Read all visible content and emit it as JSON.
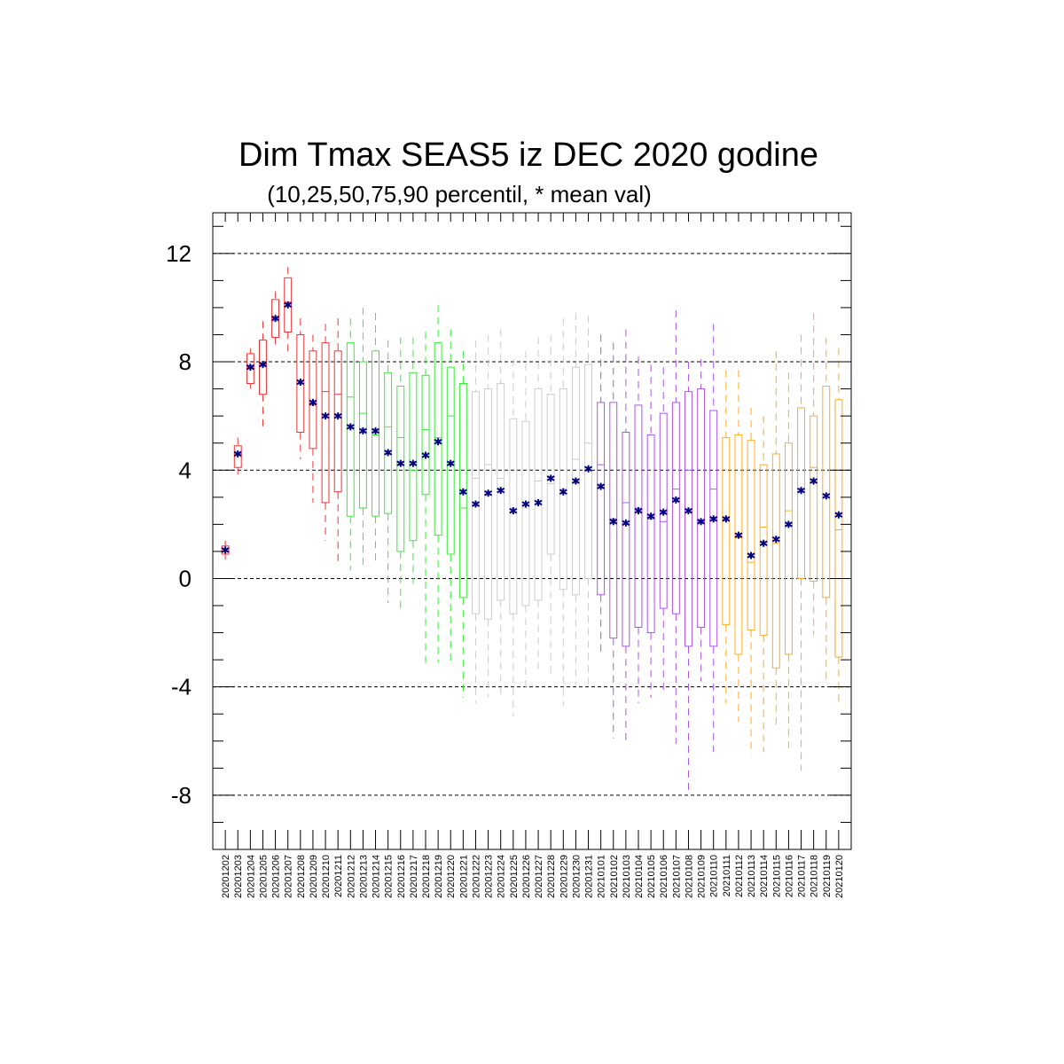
{
  "chart_data": {
    "type": "boxplot",
    "title": "Dim Tmax SEAS5 iz DEC 2020 godine",
    "subtitle": "(10,25,50,75,90 percentil, * mean val)",
    "ylim": [
      -10,
      13.5
    ],
    "yticks": [
      -8,
      -4,
      0,
      4,
      8,
      12
    ],
    "ytick_labels": [
      "-8",
      "-4",
      "0",
      "4",
      "8",
      "12"
    ],
    "grid": "horizontal dashed at major ticks",
    "mean_color": "#000080",
    "categories": [
      "20201202",
      "20201203",
      "20201204",
      "20201205",
      "20201206",
      "20201207",
      "20201208",
      "20201209",
      "20201210",
      "20201211",
      "20201212",
      "20201213",
      "20201214",
      "20201215",
      "20201216",
      "20201217",
      "20201218",
      "20201219",
      "20201220",
      "20201221",
      "20201222",
      "20201223",
      "20201224",
      "20201225",
      "20201226",
      "20201227",
      "20201228",
      "20201229",
      "20201230",
      "20201231",
      "20210101",
      "20210102",
      "20210103",
      "20210104",
      "20210105",
      "20210106",
      "20210107",
      "20210108",
      "20210109",
      "20210110",
      "20210111",
      "20210112",
      "20210113",
      "20210114",
      "20210115",
      "20210116",
      "20210117",
      "20210118",
      "20210119",
      "20210120"
    ],
    "groups": [
      {
        "color": "#ee3333",
        "from": 0,
        "to": 9
      },
      {
        "color": "#33ee33",
        "from": 10,
        "to": 19
      },
      {
        "color": "#cccccc",
        "from": 20,
        "to": 29
      },
      {
        "color": "#aa55ee",
        "from": 30,
        "to": 39
      },
      {
        "color": "#ffaa22",
        "from": 40,
        "to": 49
      }
    ],
    "boxes": [
      {
        "p10": 0.7,
        "p25": 0.9,
        "p50": 1.0,
        "p75": 1.2,
        "p90": 1.4,
        "mean": 1.05
      },
      {
        "p10": 3.7,
        "p25": 4.1,
        "p50": 4.6,
        "p75": 4.9,
        "p90": 5.2,
        "mean": 4.6
      },
      {
        "p10": 7.0,
        "p25": 7.2,
        "p50": 7.8,
        "p75": 8.3,
        "p90": 8.5,
        "mean": 7.8
      },
      {
        "p10": 5.6,
        "p25": 6.8,
        "p50": 7.9,
        "p75": 8.8,
        "p90": 9.5,
        "mean": 7.9
      },
      {
        "p10": 8.6,
        "p25": 8.9,
        "p50": 9.6,
        "p75": 10.3,
        "p90": 10.6,
        "mean": 9.6
      },
      {
        "p10": 8.2,
        "p25": 9.1,
        "p50": 10.2,
        "p75": 11.1,
        "p90": 11.5,
        "mean": 10.1
      },
      {
        "p10": 4.4,
        "p25": 5.4,
        "p50": 7.2,
        "p75": 9.0,
        "p90": 9.6,
        "mean": 7.25
      },
      {
        "p10": 2.8,
        "p25": 4.8,
        "p50": 6.4,
        "p75": 8.4,
        "p90": 9.0,
        "mean": 6.5
      },
      {
        "p10": 1.4,
        "p25": 2.8,
        "p50": 6.9,
        "p75": 8.7,
        "p90": 9.4,
        "mean": 6.0
      },
      {
        "p10": 0.5,
        "p25": 3.2,
        "p50": 6.8,
        "p75": 8.4,
        "p90": 9.6,
        "mean": 6.0
      },
      {
        "p10": 0.3,
        "p25": 2.3,
        "p50": 6.7,
        "p75": 8.7,
        "p90": 9.6,
        "mean": 5.6
      },
      {
        "p10": 0.5,
        "p25": 2.6,
        "p50": 6.1,
        "p75": 8.0,
        "p90": 10.0,
        "mean": 5.45
      },
      {
        "p10": 0.6,
        "p25": 2.3,
        "p50": 5.3,
        "p75": 8.4,
        "p90": 9.8,
        "mean": 5.45
      },
      {
        "p10": -0.9,
        "p25": 2.4,
        "p50": 5.6,
        "p75": 7.6,
        "p90": 8.8,
        "mean": 4.65
      },
      {
        "p10": -1.3,
        "p25": 1.0,
        "p50": 5.2,
        "p75": 7.1,
        "p90": 8.9,
        "mean": 4.25
      },
      {
        "p10": -0.2,
        "p25": 1.4,
        "p50": 4.0,
        "p75": 7.6,
        "p90": 8.9,
        "mean": 4.25
      },
      {
        "p10": -3.3,
        "p25": 3.1,
        "p50": 5.5,
        "p75": 7.5,
        "p90": 9.1,
        "mean": 4.55
      },
      {
        "p10": -3.1,
        "p25": 1.6,
        "p50": 5.2,
        "p75": 8.7,
        "p90": 10.1,
        "mean": 5.05
      },
      {
        "p10": -3.1,
        "p25": 0.9,
        "p50": 6.0,
        "p75": 7.8,
        "p90": 9.2,
        "mean": 4.25
      },
      {
        "p10": -4.4,
        "p25": -0.7,
        "p50": 2.6,
        "p75": 7.2,
        "p90": 8.4,
        "mean": 3.2
      },
      {
        "p10": -4.6,
        "p25": -1.3,
        "p50": 3.7,
        "p75": 6.9,
        "p90": 8.8,
        "mean": 2.75
      },
      {
        "p10": -4.4,
        "p25": -1.5,
        "p50": 4.2,
        "p75": 7.0,
        "p90": 9.0,
        "mean": 3.15
      },
      {
        "p10": -4.3,
        "p25": -0.8,
        "p50": 3.7,
        "p75": 7.2,
        "p90": 9.2,
        "mean": 3.25
      },
      {
        "p10": -5.1,
        "p25": -1.3,
        "p50": 2.6,
        "p75": 5.9,
        "p90": 8.1,
        "mean": 2.5
      },
      {
        "p10": -4.1,
        "p25": -1.0,
        "p50": 2.6,
        "p75": 5.8,
        "p90": 8.4,
        "mean": 2.75
      },
      {
        "p10": -3.4,
        "p25": -0.8,
        "p50": 3.6,
        "p75": 7.0,
        "p90": 8.9,
        "mean": 2.8
      },
      {
        "p10": -3.6,
        "p25": 0.9,
        "p50": 3.5,
        "p75": 6.8,
        "p90": 9.0,
        "mean": 3.7
      },
      {
        "p10": -4.7,
        "p25": -0.4,
        "p50": 3.3,
        "p75": 7.0,
        "p90": 9.6,
        "mean": 3.2
      },
      {
        "p10": -3.9,
        "p25": -0.6,
        "p50": 4.4,
        "p75": 7.8,
        "p90": 9.8,
        "mean": 3.6
      },
      {
        "p10": -3.9,
        "p25": 0.0,
        "p50": 5.0,
        "p75": 7.9,
        "p90": 9.7,
        "mean": 4.05
      },
      {
        "p10": -2.8,
        "p25": -0.6,
        "p50": 4.2,
        "p75": 6.5,
        "p90": 9.0,
        "mean": 3.4
      },
      {
        "p10": -5.9,
        "p25": -2.2,
        "p50": 2.2,
        "p75": 6.5,
        "p90": 8.7,
        "mean": 2.1
      },
      {
        "p10": -6.1,
        "p25": -2.5,
        "p50": 2.8,
        "p75": 5.4,
        "p90": 9.2,
        "mean": 2.05
      },
      {
        "p10": -4.6,
        "p25": -1.8,
        "p50": 2.6,
        "p75": 6.4,
        "p90": 8.2,
        "mean": 2.5
      },
      {
        "p10": -4.4,
        "p25": -2.0,
        "p50": 2.2,
        "p75": 5.3,
        "p90": 7.9,
        "mean": 2.3
      },
      {
        "p10": -4.3,
        "p25": -1.1,
        "p50": 2.1,
        "p75": 6.1,
        "p90": 7.8,
        "mean": 2.45
      },
      {
        "p10": -6.1,
        "p25": -1.3,
        "p50": 3.3,
        "p75": 6.5,
        "p90": 9.9,
        "mean": 2.9
      },
      {
        "p10": -7.9,
        "p25": -2.5,
        "p50": 4.0,
        "p75": 6.9,
        "p90": 8.0,
        "mean": 2.5
      },
      {
        "p10": -3.8,
        "p25": -1.8,
        "p50": 2.1,
        "p75": 7.0,
        "p90": 8.1,
        "mean": 2.1
      },
      {
        "p10": -6.4,
        "p25": -2.5,
        "p50": 3.3,
        "p75": 6.2,
        "p90": 9.4,
        "mean": 2.2
      },
      {
        "p10": -4.6,
        "p25": -1.7,
        "p50": 2.2,
        "p75": 5.2,
        "p90": 7.7,
        "mean": 2.2
      },
      {
        "p10": -5.3,
        "p25": -2.8,
        "p50": 1.5,
        "p75": 5.3,
        "p90": 7.7,
        "mean": 1.6
      },
      {
        "p10": -6.5,
        "p25": -1.9,
        "p50": 0.6,
        "p75": 5.1,
        "p90": 6.3,
        "mean": 0.85
      },
      {
        "p10": -6.4,
        "p25": -2.1,
        "p50": 1.9,
        "p75": 4.2,
        "p90": 6.0,
        "mean": 1.3
      },
      {
        "p10": -5.4,
        "p25": -3.3,
        "p50": 1.3,
        "p75": 4.6,
        "p90": 8.4,
        "mean": 1.45
      },
      {
        "p10": -6.3,
        "p25": -2.8,
        "p50": 2.5,
        "p75": 5.0,
        "p90": 7.6,
        "mean": 2.0
      },
      {
        "p10": -7.1,
        "p25": 0.0,
        "p50": 3.3,
        "p75": 6.3,
        "p90": 9.0,
        "mean": 3.25
      },
      {
        "p10": -2.1,
        "p25": -0.1,
        "p50": 4.1,
        "p75": 6.0,
        "p90": 9.8,
        "mean": 3.6
      },
      {
        "p10": -3.9,
        "p25": -0.7,
        "p50": 3.1,
        "p75": 7.1,
        "p90": 8.9,
        "mean": 3.05
      },
      {
        "p10": -4.6,
        "p25": -2.9,
        "p50": 1.8,
        "p75": 6.6,
        "p90": 8.5,
        "mean": 2.35
      }
    ]
  }
}
